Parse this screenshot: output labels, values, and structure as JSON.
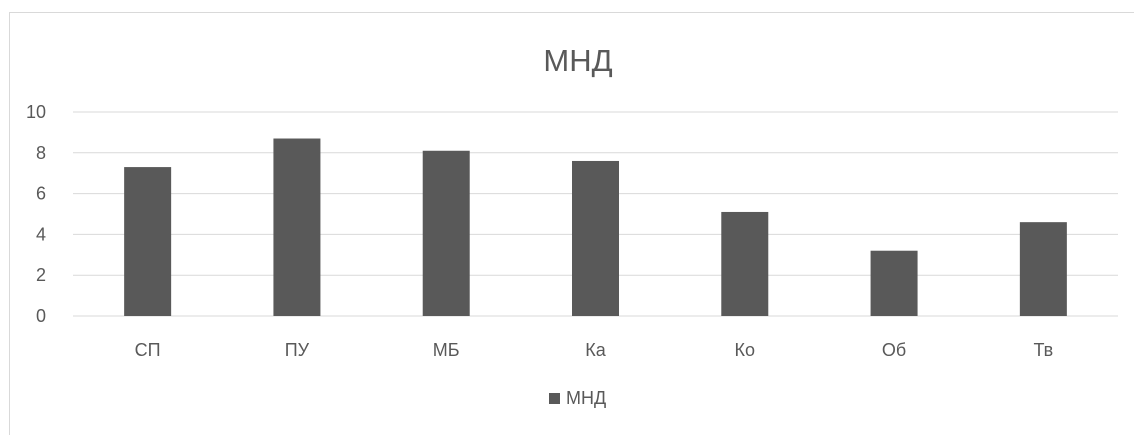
{
  "chart_data": {
    "type": "bar",
    "title": "МНД",
    "categories": [
      "СП",
      "ПУ",
      "МБ",
      "Ка",
      "Ко",
      "Об",
      "Тв"
    ],
    "series": [
      {
        "name": "МНД",
        "values": [
          7.3,
          8.7,
          8.1,
          7.6,
          5.1,
          3.2,
          4.6
        ]
      }
    ],
    "ylim": [
      0,
      10
    ],
    "yticks": [
      "0",
      "2",
      "4",
      "6",
      "8",
      "10"
    ],
    "xlabel": "",
    "ylabel": "",
    "grid": true,
    "legend": "bottom",
    "colors": {
      "bar": "#595959",
      "grid": "#d9d9d9",
      "text": "#595959"
    }
  }
}
